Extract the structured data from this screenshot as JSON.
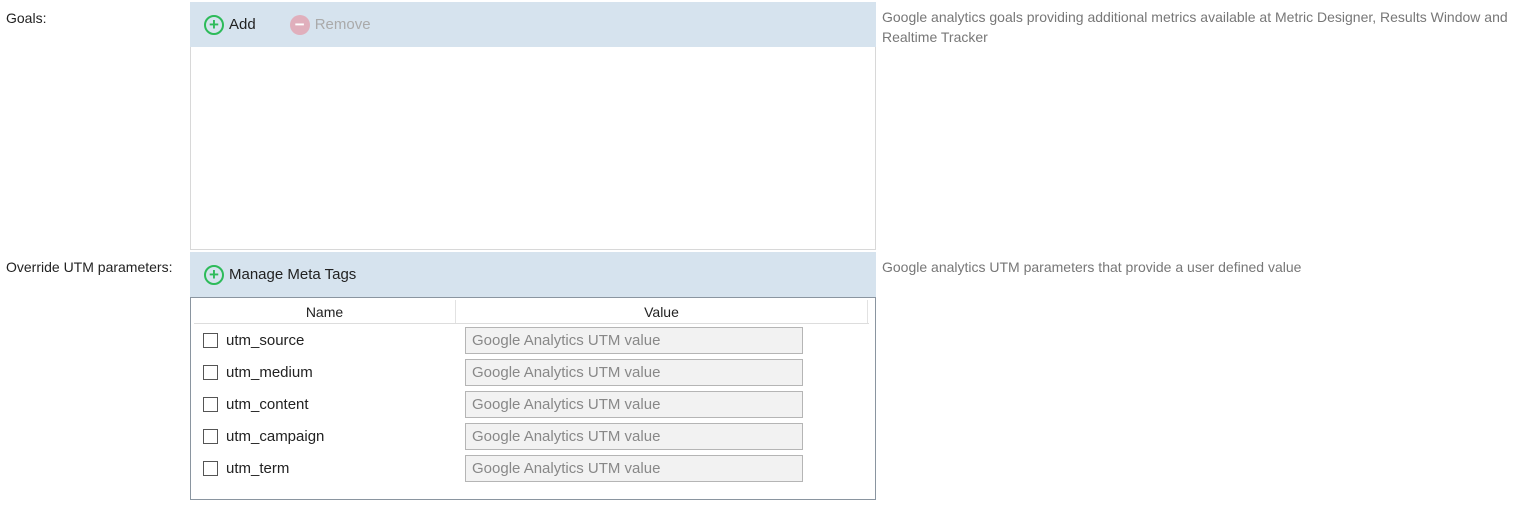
{
  "goals": {
    "label": "Goals:",
    "add_label": "Add",
    "remove_label": "Remove",
    "description": "Google analytics goals providing additional metrics available at Metric Designer, Results Window and Realtime Tracker"
  },
  "utm": {
    "label": "Override UTM parameters:",
    "manage_label": "Manage Meta Tags",
    "description": "Google analytics UTM parameters that provide a user defined value",
    "columns": [
      "Name",
      "Value"
    ],
    "rows": [
      {
        "name": "utm_source",
        "value": "",
        "placeholder": "Google Analytics UTM value",
        "checked": false
      },
      {
        "name": "utm_medium",
        "value": "",
        "placeholder": "Google Analytics UTM value",
        "checked": false
      },
      {
        "name": "utm_content",
        "value": "",
        "placeholder": "Google Analytics UTM value",
        "checked": false
      },
      {
        "name": "utm_campaign",
        "value": "",
        "placeholder": "Google Analytics UTM value",
        "checked": false
      },
      {
        "name": "utm_term",
        "value": "",
        "placeholder": "Google Analytics UTM value",
        "checked": false
      }
    ]
  },
  "colors": {
    "toolbar_bg": "#d6e3ee",
    "add_green": "#2dbb5a",
    "remove_pink": "#e0afbc"
  }
}
